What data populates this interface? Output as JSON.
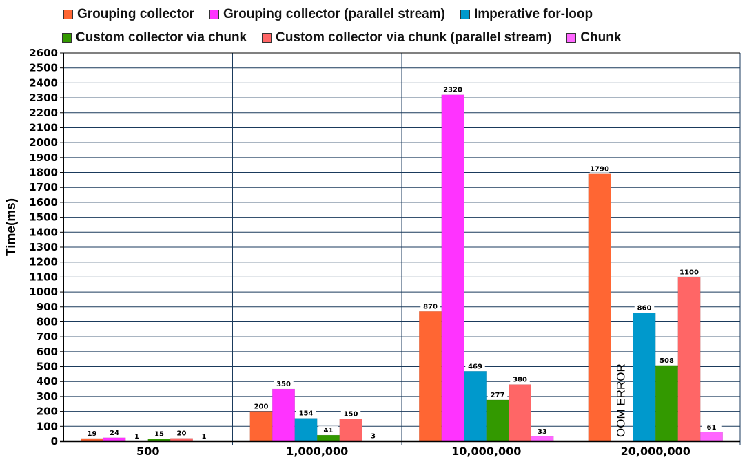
{
  "chart_data": {
    "type": "bar",
    "title": "",
    "xlabel": "",
    "ylabel": "Time(ms)",
    "ylim": [
      0,
      2600
    ],
    "ytick_step": 100,
    "yticks": [
      "0",
      "100",
      "200",
      "300",
      "400",
      "500",
      "600",
      "700",
      "800",
      "900",
      "1000",
      "1100",
      "1200",
      "1300",
      "1400",
      "1500",
      "1600",
      "1700",
      "1800",
      "1900",
      "2000",
      "2100",
      "2200",
      "2300",
      "2400",
      "2500",
      "2600"
    ],
    "grid": true,
    "legend_position": "top",
    "categories": [
      "500",
      "1,000,000",
      "10,000,000",
      "20,000,000"
    ],
    "series": [
      {
        "name": "Grouping collector",
        "color": "#ff6633",
        "values": [
          19,
          200,
          870,
          1790
        ]
      },
      {
        "name": "Grouping collector (parallel stream)",
        "color": "#ff33ff",
        "values": [
          24,
          350,
          2320,
          null
        ]
      },
      {
        "name": "Imperative for-loop",
        "color": "#0099cc",
        "values": [
          1,
          154,
          469,
          860
        ]
      },
      {
        "name": "Custom collector via chunk",
        "color": "#339900",
        "values": [
          15,
          41,
          277,
          508
        ]
      },
      {
        "name": "Custom collector via chunk (parallel stream)",
        "color": "#ff6666",
        "values": [
          20,
          150,
          380,
          1100
        ]
      },
      {
        "name": "Chunk",
        "color": "#ff66ff",
        "values": [
          1,
          3,
          33,
          61
        ]
      }
    ],
    "annotations": [
      {
        "category": "20,000,000",
        "series": "Grouping collector (parallel stream)",
        "text": "OOM ERROR"
      }
    ]
  },
  "legend": {
    "rows": [
      [
        0,
        1,
        2
      ],
      [
        3,
        4,
        5
      ]
    ]
  }
}
